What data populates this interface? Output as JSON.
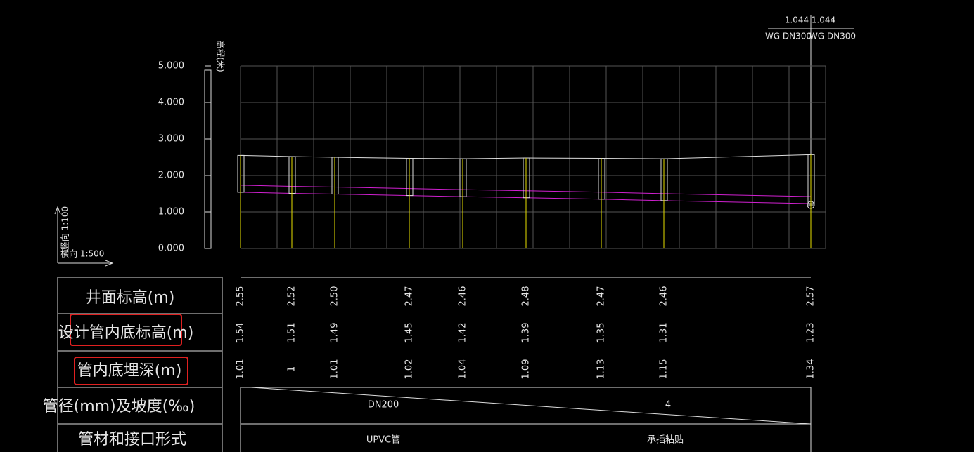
{
  "top_labels": {
    "elev_left": "1.044",
    "elev_right": "1.044",
    "pipe_left": "WG DN300",
    "pipe_right": "WG DN300"
  },
  "axis": {
    "title": "高程(米)",
    "ticks": [
      "5.000",
      "4.000",
      "3.000",
      "2.000",
      "1.000",
      "0.000"
    ]
  },
  "scale": {
    "vertical": "竖向 1:100",
    "horizontal": "横向 1:500"
  },
  "table": {
    "rows": [
      {
        "label": "井面标高(m)",
        "values": [
          "2.55",
          "2.52",
          "2.50",
          "2.47",
          "2.46",
          "2.48",
          "2.47",
          "2.46",
          "2.57"
        ]
      },
      {
        "label": "设计管内底标高(m)",
        "values": [
          "1.54",
          "1.51",
          "1.49",
          "1.45",
          "1.42",
          "1.39",
          "1.35",
          "1.31",
          "1.23"
        ]
      },
      {
        "label": "管内底埋深(m)",
        "values": [
          "1.01",
          "1",
          "1.01",
          "1.02",
          "1.04",
          "1.09",
          "1.13",
          "1.15",
          "1.34"
        ]
      }
    ],
    "pipe": {
      "label": "管径(mm)及坡度(‰)",
      "size": "DN200",
      "slope": "4"
    },
    "material": {
      "label": "管材和接口形式",
      "type": "UPVC管",
      "joint": "承插粘贴"
    }
  }
}
